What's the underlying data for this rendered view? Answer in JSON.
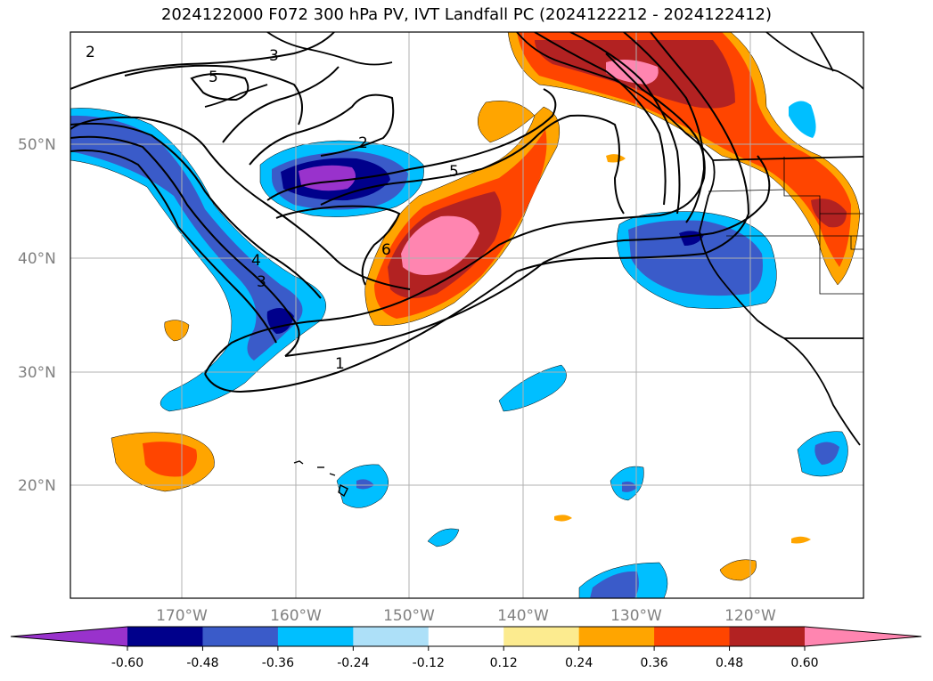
{
  "title": "2024122000 F072 300 hPa PV, IVT Landfall PC (2024122212 - 2024122412)",
  "lat_labels": [
    "50°N",
    "40°N",
    "30°N",
    "20°N"
  ],
  "lon_labels": [
    "170°W",
    "160°W",
    "150°W",
    "140°W",
    "130°W",
    "120°W"
  ],
  "contour_labels": [
    "2",
    "3",
    "5",
    "2",
    "5",
    "6",
    "4",
    "3",
    "1"
  ],
  "colorbar": {
    "colors": [
      "#9932CC",
      "#00008B",
      "#3A5BC9",
      "#00BFFF",
      "#ADE0F8",
      "#FFFFFF",
      "#FCEB8F",
      "#FFA500",
      "#FF4500",
      "#B22222",
      "#FF85B0"
    ],
    "tick_labels": [
      "-0.60",
      "-0.48",
      "-0.36",
      "-0.24",
      "-0.12",
      "0.12",
      "0.24",
      "0.36",
      "0.48",
      "0.60"
    ]
  }
}
